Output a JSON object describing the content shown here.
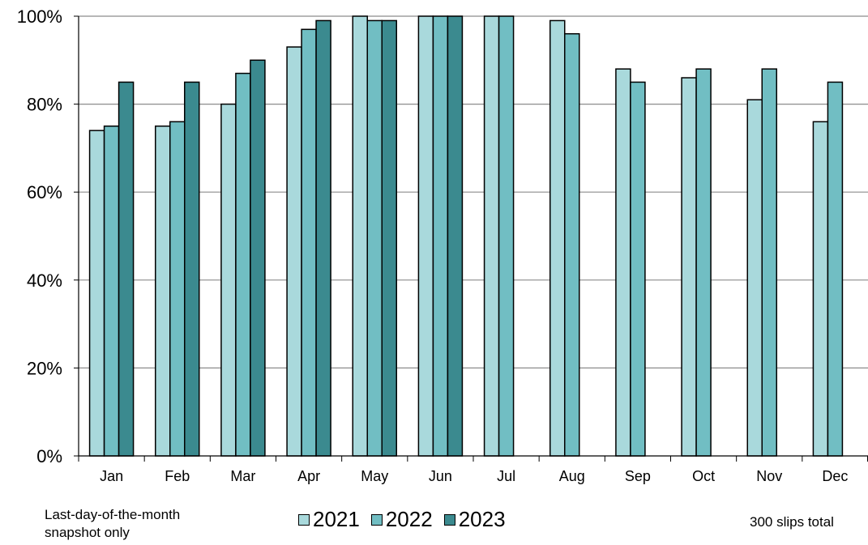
{
  "chart_data": {
    "type": "bar",
    "categories": [
      "Jan",
      "Feb",
      "Mar",
      "Apr",
      "May",
      "Jun",
      "Jul",
      "Aug",
      "Sep",
      "Oct",
      "Nov",
      "Dec"
    ],
    "series": [
      {
        "name": "2021",
        "color": "#a9d9dc",
        "values": [
          74,
          75,
          80,
          93,
          100,
          100,
          100,
          99,
          88,
          86,
          81,
          76
        ]
      },
      {
        "name": "2022",
        "color": "#71bec3",
        "values": [
          75,
          76,
          87,
          97,
          99,
          100,
          100,
          96,
          85,
          88,
          88,
          85
        ]
      },
      {
        "name": "2023",
        "color": "#3b8a8f",
        "values": [
          85,
          85,
          90,
          99,
          99,
          100,
          null,
          null,
          null,
          null,
          null,
          null
        ]
      }
    ],
    "ylim": [
      0,
      100
    ],
    "yticks": [
      "0%",
      "20%",
      "40%",
      "60%",
      "80%",
      "100%"
    ],
    "ytick_values": [
      0,
      20,
      40,
      60,
      80,
      100
    ],
    "grid": true,
    "legend": "bottom-center"
  },
  "notes": {
    "left_line1": "Last-day-of-the-month",
    "left_line2": "snapshot only",
    "right": "300 slips total"
  }
}
